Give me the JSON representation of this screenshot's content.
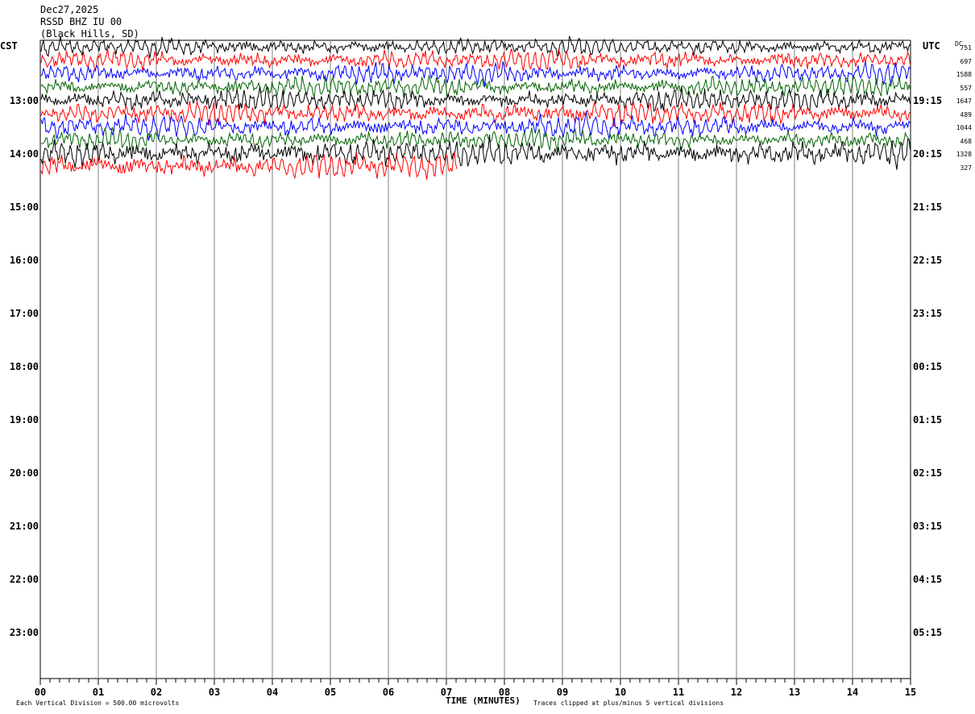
{
  "header": {
    "date": "Dec27,2025",
    "station": "RSSD BHZ IU 00",
    "location": "(Black Hills, SD)"
  },
  "tz_left": "CST",
  "tz_right": "UTC",
  "dc_label": "DC",
  "chart_data": {
    "type": "line",
    "title": "",
    "xlabel": "TIME (MINUTES)",
    "ylabel": "",
    "xlim": [
      0,
      15
    ],
    "x_ticks": [
      "00",
      "01",
      "02",
      "03",
      "04",
      "05",
      "06",
      "07",
      "08",
      "09",
      "10",
      "11",
      "12",
      "13",
      "14",
      "15"
    ],
    "left_hour_labels": [
      "13:00",
      "14:00",
      "15:00",
      "16:00",
      "17:00",
      "18:00",
      "19:00",
      "20:00",
      "21:00",
      "22:00",
      "23:00"
    ],
    "right_hour_labels": [
      "19:15",
      "20:15",
      "21:15",
      "22:15",
      "23:15",
      "00:15",
      "01:15",
      "02:15",
      "03:15",
      "04:15",
      "05:15"
    ],
    "grid": true,
    "series_colors": [
      "#000000",
      "#ff0000",
      "#0000ff",
      "#006400"
    ],
    "traces": [
      {
        "row": 0,
        "color": "#000000",
        "dc": "751",
        "end_min": 15,
        "amp": 0.8
      },
      {
        "row": 1,
        "color": "#ff0000",
        "dc": "697",
        "end_min": 15,
        "amp": 0.9
      },
      {
        "row": 2,
        "color": "#0000ff",
        "dc": "1588",
        "end_min": 15,
        "amp": 0.9
      },
      {
        "row": 3,
        "color": "#006400",
        "dc": "557",
        "end_min": 15,
        "amp": 0.9
      },
      {
        "row": 4,
        "color": "#000000",
        "dc": "1647",
        "end_min": 15,
        "amp": 1.0
      },
      {
        "row": 5,
        "color": "#ff0000",
        "dc": "489",
        "end_min": 15,
        "amp": 1.0
      },
      {
        "row": 6,
        "color": "#0000ff",
        "dc": "1044",
        "end_min": 15,
        "amp": 1.0
      },
      {
        "row": 7,
        "color": "#006400",
        "dc": "468",
        "end_min": 15,
        "amp": 0.9
      },
      {
        "row": 8,
        "color": "#000000",
        "dc": "1328",
        "end_min": 15,
        "amp": 1.2
      },
      {
        "row": 9,
        "color": "#ff0000",
        "dc": "327",
        "end_min": 7.2,
        "amp": 1.2
      }
    ],
    "footer_left": "Each Vertical Division =  500.00 microvolts",
    "footer_right": "Traces clipped at plus/minus 5 vertical divisions"
  }
}
